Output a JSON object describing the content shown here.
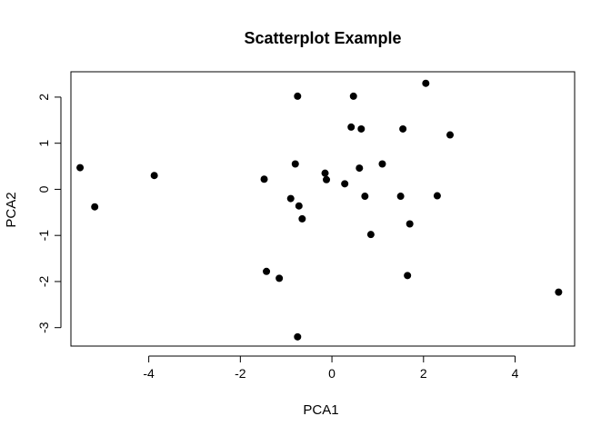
{
  "chart_data": {
    "type": "scatter",
    "title": "Scatterplot Example",
    "xlabel": "PCA1",
    "ylabel": "PCA2",
    "xlim": [
      -5.7,
      5.3
    ],
    "ylim": [
      -3.4,
      2.55
    ],
    "x_ticks": [
      -4,
      -2,
      0,
      2,
      4
    ],
    "y_ticks": [
      -3,
      -2,
      -1,
      0,
      1,
      2
    ],
    "x_tick_labels": [
      "-4",
      "-2",
      "0",
      "2",
      "4"
    ],
    "y_tick_labels": [
      "-3",
      "-2",
      "-1",
      "0",
      "1",
      "2"
    ],
    "grid": false,
    "legend": "none",
    "marker_color": "#000000",
    "points": [
      {
        "x": -5.5,
        "y": 0.47
      },
      {
        "x": -5.18,
        "y": -0.38
      },
      {
        "x": -3.88,
        "y": 0.3
      },
      {
        "x": -1.48,
        "y": 0.22
      },
      {
        "x": -1.43,
        "y": -1.78
      },
      {
        "x": -1.15,
        "y": -1.93
      },
      {
        "x": -0.9,
        "y": -0.2
      },
      {
        "x": -0.8,
        "y": 0.55
      },
      {
        "x": -0.75,
        "y": 2.02
      },
      {
        "x": -0.72,
        "y": -0.36
      },
      {
        "x": -0.65,
        "y": -0.64
      },
      {
        "x": -0.75,
        "y": -3.2
      },
      {
        "x": -0.15,
        "y": 0.35
      },
      {
        "x": -0.12,
        "y": 0.21
      },
      {
        "x": 0.28,
        "y": 0.12
      },
      {
        "x": 0.42,
        "y": 1.35
      },
      {
        "x": 0.47,
        "y": 2.02
      },
      {
        "x": 0.6,
        "y": 0.46
      },
      {
        "x": 0.64,
        "y": 1.31
      },
      {
        "x": 0.72,
        "y": -0.15
      },
      {
        "x": 0.85,
        "y": -0.98
      },
      {
        "x": 1.1,
        "y": 0.55
      },
      {
        "x": 1.5,
        "y": -0.15
      },
      {
        "x": 1.55,
        "y": 1.31
      },
      {
        "x": 1.65,
        "y": -1.87
      },
      {
        "x": 1.7,
        "y": -0.75
      },
      {
        "x": 2.05,
        "y": 2.3
      },
      {
        "x": 2.3,
        "y": -0.14
      },
      {
        "x": 2.58,
        "y": 1.18
      },
      {
        "x": 4.95,
        "y": -2.23
      }
    ]
  }
}
